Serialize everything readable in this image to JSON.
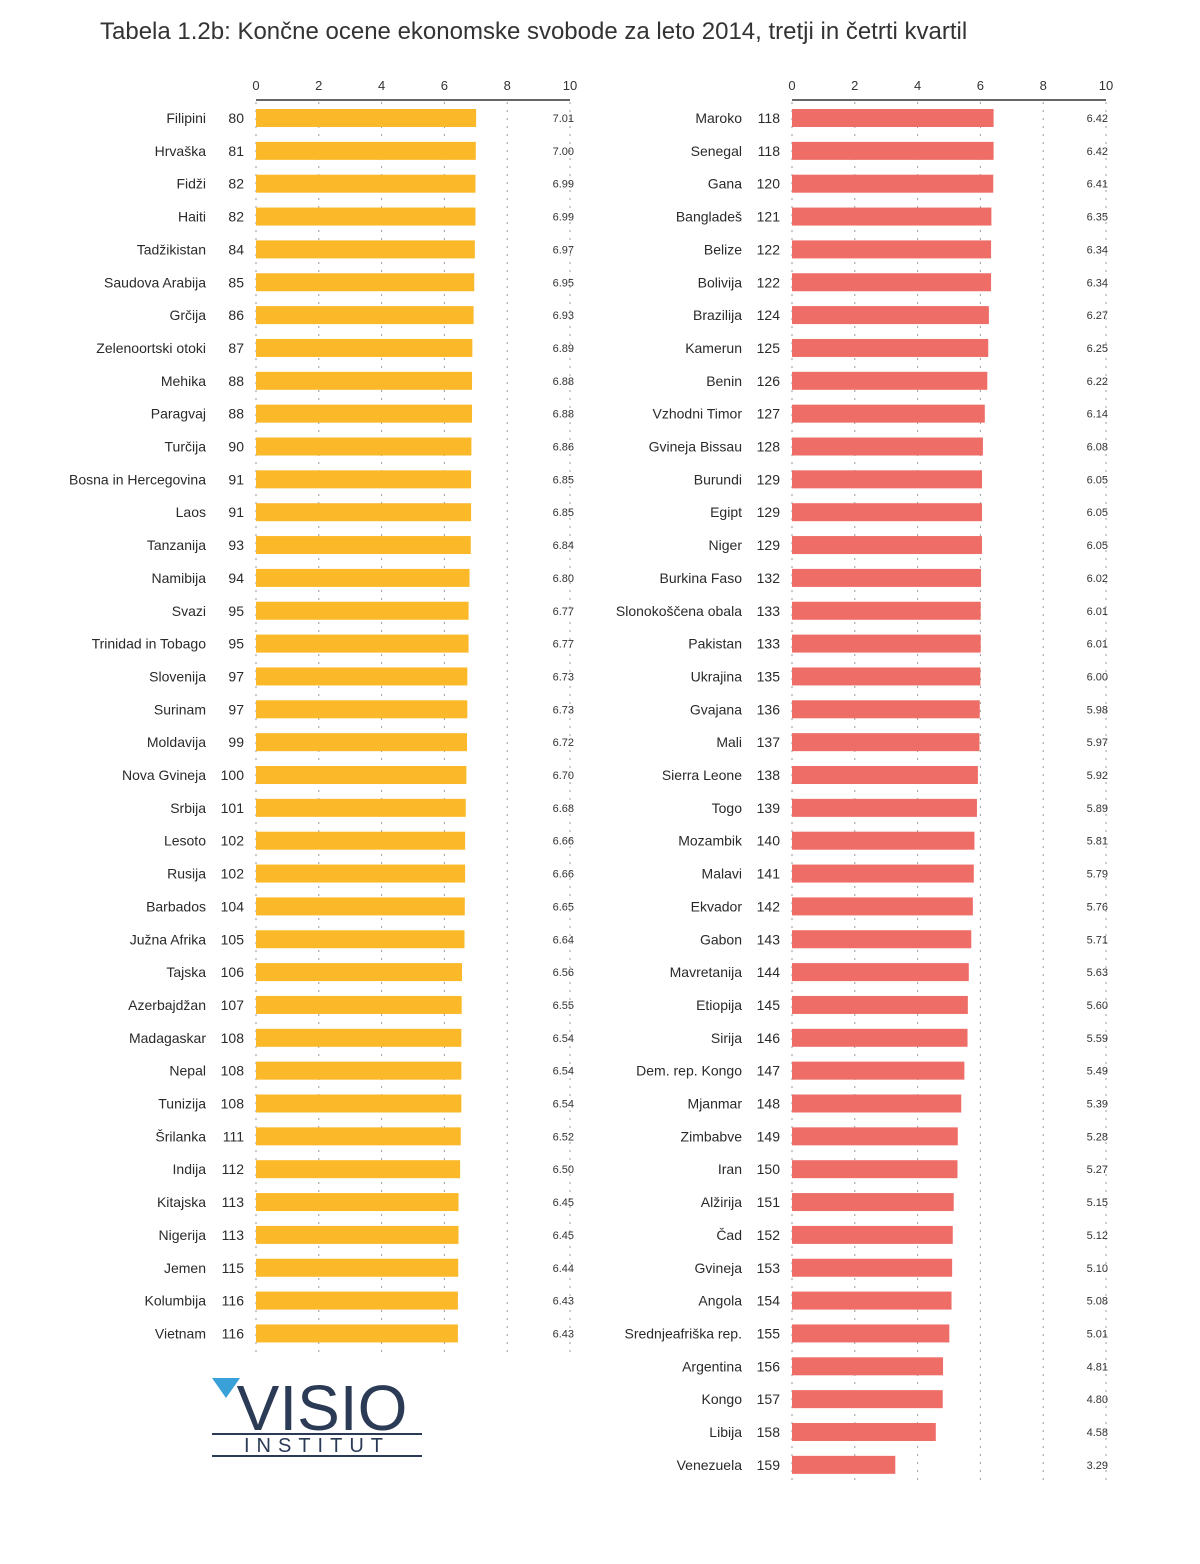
{
  "title": "Tabela 1.2b: Končne ocene ekonomske svobode za leto 2014, tretji in četrti kvartil",
  "logo": {
    "line1": "VISIO",
    "line2": "INSTITUT"
  },
  "colors": {
    "left_bar": "#FBB829",
    "right_bar": "#EE6D67",
    "grid": "#9a9a9a",
    "axis": "#333333"
  },
  "chart_data": [
    {
      "type": "bar",
      "orientation": "horizontal",
      "xlim": [
        0,
        10
      ],
      "ticks": [
        0,
        2,
        4,
        6,
        8,
        10
      ],
      "grid": "dotted vertical",
      "color": "#FBB829",
      "categories": [
        "Filipini",
        "Hrvaška",
        "Fidži",
        "Haiti",
        "Tadžikistan",
        "Saudova Arabija",
        "Grčija",
        "Zelenoortski otoki",
        "Mehika",
        "Paragvaj",
        "Turčija",
        "Bosna in Hercegovina",
        "Laos",
        "Tanzanija",
        "Namibija",
        "Svazi",
        "Trinidad in Tobago",
        "Slovenija",
        "Surinam",
        "Moldavija",
        "Nova Gvineja",
        "Srbija",
        "Lesoto",
        "Rusija",
        "Barbados",
        "Južna Afrika",
        "Tajska",
        "Azerbajdžan",
        "Madagaskar",
        "Nepal",
        "Tunizija",
        "Šrilanka",
        "Indija",
        "Kitajska",
        "Nigerija",
        "Jemen",
        "Kolumbija",
        "Vietnam"
      ],
      "ranks": [
        80,
        81,
        82,
        82,
        84,
        85,
        86,
        87,
        88,
        88,
        90,
        91,
        91,
        93,
        94,
        95,
        95,
        97,
        97,
        99,
        100,
        101,
        102,
        102,
        104,
        105,
        106,
        107,
        108,
        108,
        108,
        111,
        112,
        113,
        113,
        115,
        116,
        116
      ],
      "values": [
        7.01,
        7.0,
        6.99,
        6.99,
        6.97,
        6.95,
        6.93,
        6.89,
        6.88,
        6.88,
        6.86,
        6.85,
        6.85,
        6.84,
        6.8,
        6.77,
        6.77,
        6.73,
        6.73,
        6.72,
        6.7,
        6.68,
        6.66,
        6.66,
        6.65,
        6.64,
        6.56,
        6.55,
        6.54,
        6.54,
        6.54,
        6.52,
        6.5,
        6.45,
        6.45,
        6.44,
        6.43,
        6.43
      ],
      "value_labels": [
        "7.01",
        "7.00",
        "6.99",
        "6.99",
        "6.97",
        "6.95",
        "6.93",
        "6.89",
        "6.88",
        "6.88",
        "6.86",
        "6.85",
        "6.85",
        "6.84",
        "6.80",
        "6.77",
        "6.77",
        "6.73",
        "6.73",
        "6.72",
        "6.70",
        "6.68",
        "6.66",
        "6.66",
        "6.65",
        "6.64",
        "6.56",
        "6.55",
        "6.54",
        "6.54",
        "6.54",
        "6.52",
        "6.50",
        "6.45",
        "6.45",
        "6.44",
        "6.43",
        "6.43"
      ]
    },
    {
      "type": "bar",
      "orientation": "horizontal",
      "xlim": [
        0,
        10
      ],
      "ticks": [
        0,
        2,
        4,
        6,
        8,
        10
      ],
      "grid": "dotted vertical",
      "color": "#EE6D67",
      "categories": [
        "Maroko",
        "Senegal",
        "Gana",
        "Bangladeš",
        "Belize",
        "Bolivija",
        "Brazilija",
        "Kamerun",
        "Benin",
        "Vzhodni Timor",
        "Gvineja Bissau",
        "Burundi",
        "Egipt",
        "Niger",
        "Burkina Faso",
        "Slonokoščena obala",
        "Pakistan",
        "Ukrajina",
        "Gvajana",
        "Mali",
        "Sierra Leone",
        "Togo",
        "Mozambik",
        "Malavi",
        "Ekvador",
        "Gabon",
        "Mavretanija",
        "Etiopija",
        "Sirija",
        "Dem. rep. Kongo",
        "Mjanmar",
        "Zimbabve",
        "Iran",
        "Alžirija",
        "Čad",
        "Gvineja",
        "Angola",
        "Srednjeafriška rep.",
        "Argentina",
        "Kongo",
        "Libija",
        "Venezuela"
      ],
      "ranks": [
        118,
        118,
        120,
        121,
        122,
        122,
        124,
        125,
        126,
        127,
        128,
        129,
        129,
        129,
        132,
        133,
        133,
        135,
        136,
        137,
        138,
        139,
        140,
        141,
        142,
        143,
        144,
        145,
        146,
        147,
        148,
        149,
        150,
        151,
        152,
        153,
        154,
        155,
        156,
        157,
        158,
        159
      ],
      "values": [
        6.42,
        6.42,
        6.41,
        6.35,
        6.34,
        6.34,
        6.27,
        6.25,
        6.22,
        6.14,
        6.08,
        6.05,
        6.05,
        6.05,
        6.02,
        6.01,
        6.01,
        6.0,
        5.98,
        5.97,
        5.92,
        5.89,
        5.81,
        5.79,
        5.76,
        5.71,
        5.63,
        5.6,
        5.59,
        5.49,
        5.39,
        5.28,
        5.27,
        5.15,
        5.12,
        5.1,
        5.08,
        5.01,
        4.81,
        4.8,
        4.58,
        3.29
      ],
      "value_labels": [
        "6.42",
        "6.42",
        "6.41",
        "6.35",
        "6.34",
        "6.34",
        "6.27",
        "6.25",
        "6.22",
        "6.14",
        "6.08",
        "6.05",
        "6.05",
        "6.05",
        "6.02",
        "6.01",
        "6.01",
        "6.00",
        "5.98",
        "5.97",
        "5.92",
        "5.89",
        "5.81",
        "5.79",
        "5.76",
        "5.71",
        "5.63",
        "5.60",
        "5.59",
        "5.49",
        "5.39",
        "5.28",
        "5.27",
        "5.15",
        "5.12",
        "5.10",
        "5.08",
        "5.01",
        "4.81",
        "4.80",
        "4.58",
        "3.29"
      ]
    }
  ]
}
